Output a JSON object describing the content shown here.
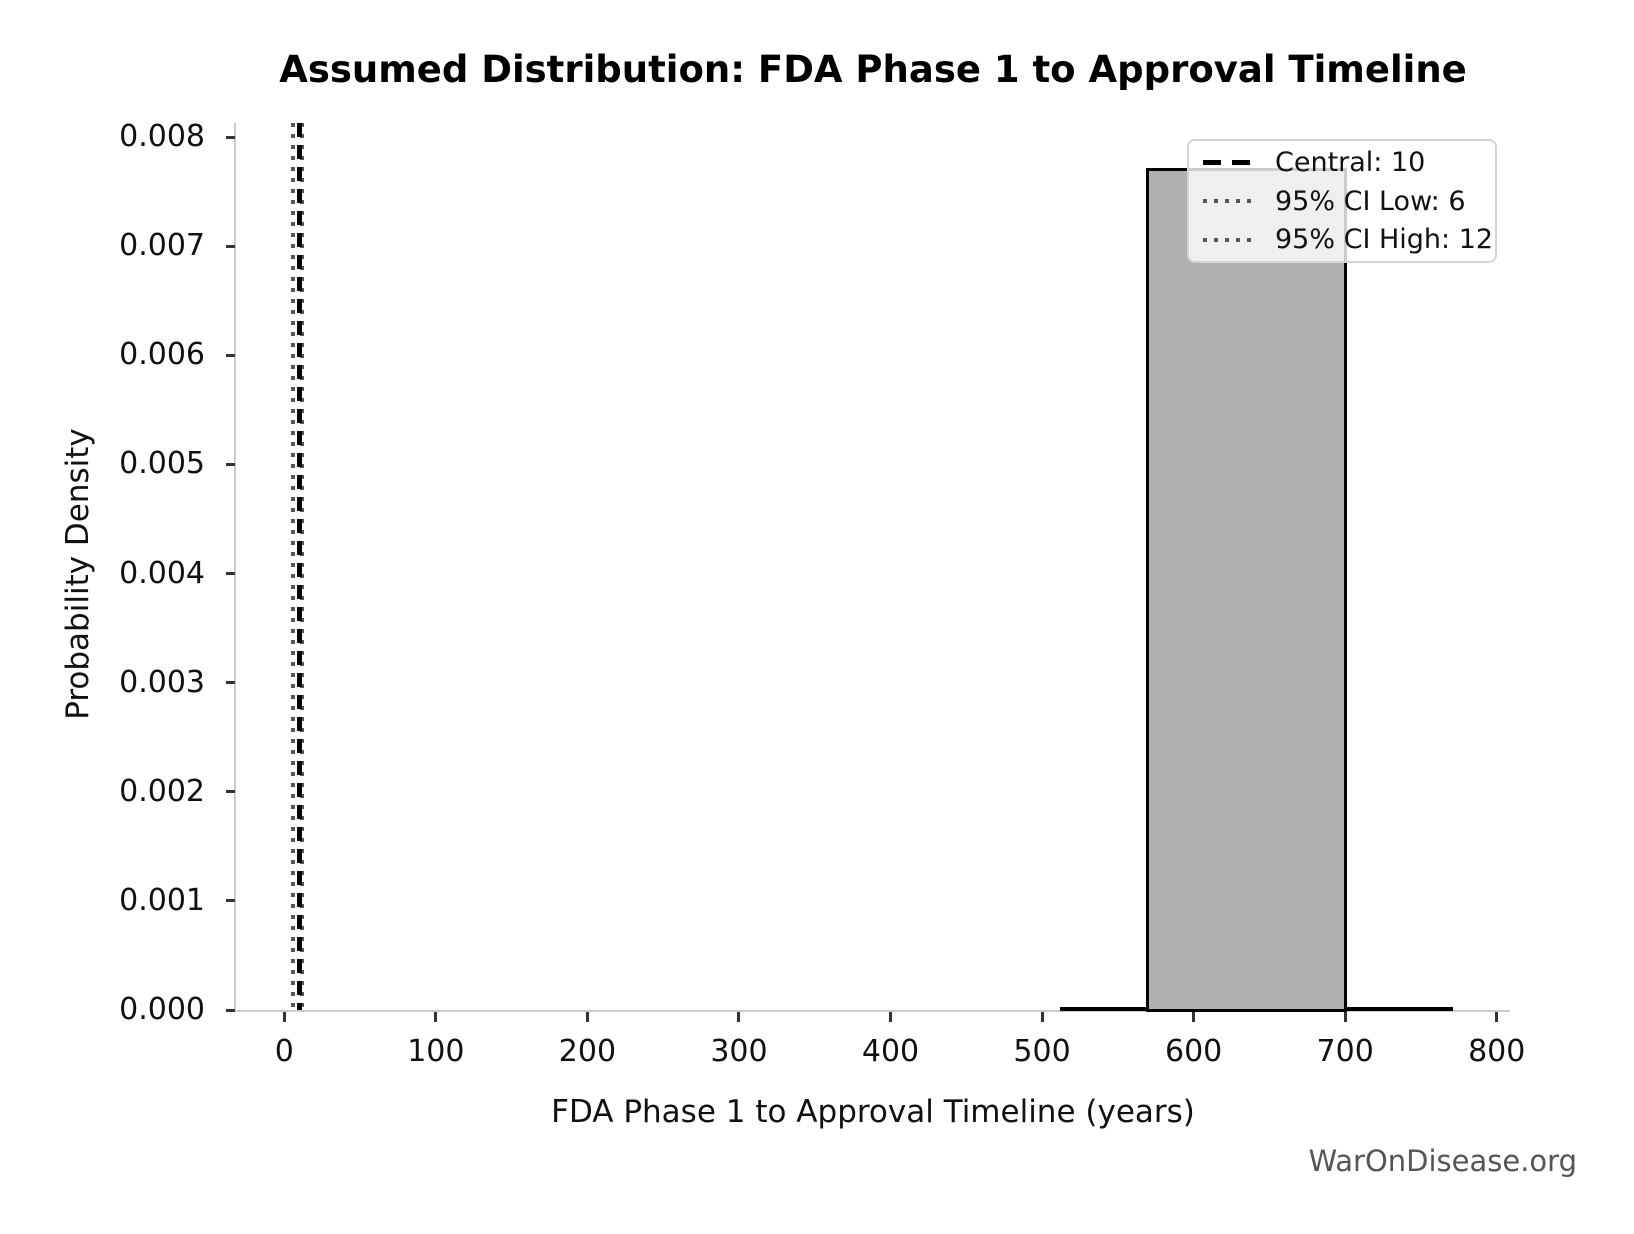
{
  "figure": {
    "watermark": "WarOnDisease.org"
  },
  "chart_data": {
    "type": "bar",
    "subtype": "histogram-density",
    "title": "Assumed Distribution: FDA Phase 1 to Approval Timeline",
    "xlabel": "FDA Phase 1 to Approval Timeline (years)",
    "ylabel": "Probability Density",
    "x_ticks": [
      0,
      100,
      200,
      300,
      400,
      500,
      600,
      700,
      800
    ],
    "y_ticks": [
      {
        "value": 0.0,
        "label": "0.000"
      },
      {
        "value": 0.001,
        "label": "0.001"
      },
      {
        "value": 0.002,
        "label": "0.002"
      },
      {
        "value": 0.003,
        "label": "0.003"
      },
      {
        "value": 0.004,
        "label": "0.004"
      },
      {
        "value": 0.005,
        "label": "0.005"
      },
      {
        "value": 0.006,
        "label": "0.006"
      },
      {
        "value": 0.007,
        "label": "0.007"
      },
      {
        "value": 0.008,
        "label": "0.008"
      }
    ],
    "xlim": [
      -32,
      809
    ],
    "ylim": [
      0,
      0.00815
    ],
    "grid": false,
    "bars": [
      {
        "x_start": 570,
        "x_end": 700,
        "density": 0.0077
      }
    ],
    "baseline_extent": {
      "x_start": 512,
      "x_end": 771,
      "density": 0.0
    },
    "vlines": [
      {
        "name": "ci-low",
        "label": "95% CI Low: 6",
        "value": 6,
        "style": "dotted",
        "color": "#555555"
      },
      {
        "name": "ci-high",
        "label": "95% CI High: 12",
        "value": 12,
        "style": "dotted",
        "color": "#555555"
      },
      {
        "name": "central",
        "label": "Central: 10",
        "value": 10,
        "style": "dashed",
        "color": "#000000"
      }
    ],
    "legend": {
      "position": "upper right",
      "entries": [
        {
          "label": "Central: 10",
          "style": "dashed",
          "color": "#000000"
        },
        {
          "label": "95% CI Low: 6",
          "style": "dotted",
          "color": "#555555"
        },
        {
          "label": "95% CI High: 12",
          "style": "dotted",
          "color": "#555555"
        }
      ]
    },
    "colors": {
      "bar_fill": "#b0b0b0",
      "bar_edge": "#000000",
      "spine": "#cccccc",
      "tick": "#333333",
      "text": "#111111",
      "watermark": "#555555"
    }
  }
}
